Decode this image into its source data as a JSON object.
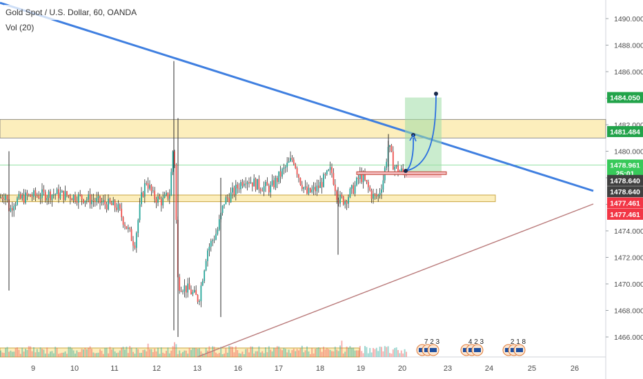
{
  "header": {
    "symbol_title": "Gold Spot / U.S. Dollar, 60, OANDA",
    "indicator": "Vol (20)"
  },
  "chart_data": {
    "type": "candlestick",
    "price_axis": {
      "ticks": [
        "1490.000",
        "1488.000",
        "1486.000",
        "1484.000",
        "1482.000",
        "1480.000",
        "1478.000",
        "1476.000",
        "1474.000",
        "1472.000",
        "1470.000",
        "1468.000",
        "1466.000"
      ],
      "tick_values": [
        1490,
        1488,
        1486,
        1484,
        1482,
        1480,
        1478,
        1476,
        1474,
        1472,
        1470,
        1468,
        1466
      ],
      "ylim": [
        1465.4,
        1490.5
      ]
    },
    "time_axis": {
      "ticks": [
        "9",
        "10",
        "11",
        "12",
        "13",
        "16",
        "17",
        "18",
        "19",
        "20",
        "23",
        "24",
        "25",
        "26"
      ]
    },
    "price_labels": [
      {
        "value": "1484.050",
        "price": 1484.05,
        "color": "#22a34a"
      },
      {
        "value": "1481.484",
        "price": 1481.484,
        "color": "#22a34a"
      },
      {
        "value": "1478.961",
        "price": 1478.961,
        "color": "#38c95a"
      },
      {
        "value": "25:01",
        "price": 1478.35,
        "color": "#38c95a"
      },
      {
        "value": "1478.640",
        "price": 1477.8,
        "color": "#404040"
      },
      {
        "value": "1478.640",
        "price": 1476.95,
        "color": "#404040"
      },
      {
        "value": "1477.461",
        "price": 1476.1,
        "color": "#f23645"
      },
      {
        "value": "1477.461",
        "price": 1475.25,
        "color": "#f23645"
      }
    ],
    "resistance_zone": [
      1481.0,
      1482.4
    ],
    "support_zone": [
      1476.2,
      1476.7
    ],
    "long_position": {
      "entry": 1478.35,
      "target": 1484.05,
      "stop": 1478.0
    },
    "events": [
      {
        "label": "7 2 3"
      },
      {
        "label": "4 2 3"
      },
      {
        "label": "2 1 8"
      }
    ],
    "colors": {
      "up": "#26a69a",
      "down": "#ef5350",
      "wick": "#333333",
      "trendline": "#3f7fe0",
      "support_line": "#b97a7a",
      "zone_fill": "#fbe8a6",
      "zone_stroke": "#c8a640"
    }
  }
}
